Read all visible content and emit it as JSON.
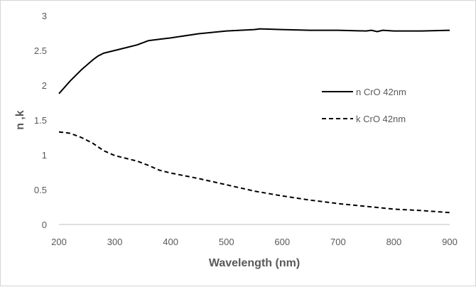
{
  "chart_data": {
    "type": "line",
    "title": "",
    "xlabel": "Wavelength (nm)",
    "ylabel": "n ,k",
    "xlim": [
      200,
      900
    ],
    "ylim": [
      0,
      3
    ],
    "x_ticks": [
      200,
      300,
      400,
      500,
      600,
      700,
      800,
      900
    ],
    "y_ticks": [
      0,
      0.5,
      1,
      1.5,
      2,
      2.5,
      3
    ],
    "x_tick_labels": [
      "200",
      "300",
      "400",
      "500",
      "600",
      "700",
      "800",
      "900"
    ],
    "y_tick_labels": [
      "0",
      "0.5",
      "1",
      "1.5",
      "2",
      "2.5",
      "3"
    ],
    "grid": false,
    "legend_position": "right",
    "series": [
      {
        "name": "n CrO 42nm",
        "style": "solid",
        "color": "#000000",
        "points": [
          [
            200,
            1.88
          ],
          [
            220,
            2.06
          ],
          [
            240,
            2.22
          ],
          [
            260,
            2.36
          ],
          [
            270,
            2.42
          ],
          [
            280,
            2.46
          ],
          [
            300,
            2.5
          ],
          [
            320,
            2.54
          ],
          [
            340,
            2.58
          ],
          [
            360,
            2.64
          ],
          [
            380,
            2.66
          ],
          [
            400,
            2.68
          ],
          [
            450,
            2.74
          ],
          [
            500,
            2.78
          ],
          [
            550,
            2.8
          ],
          [
            560,
            2.81
          ],
          [
            600,
            2.8
          ],
          [
            650,
            2.79
          ],
          [
            700,
            2.79
          ],
          [
            750,
            2.78
          ],
          [
            760,
            2.79
          ],
          [
            770,
            2.77
          ],
          [
            780,
            2.79
          ],
          [
            800,
            2.78
          ],
          [
            850,
            2.78
          ],
          [
            900,
            2.79
          ]
        ]
      },
      {
        "name": "k CrO 42nm",
        "style": "dashed",
        "color": "#000000",
        "points": [
          [
            200,
            1.33
          ],
          [
            220,
            1.31
          ],
          [
            240,
            1.25
          ],
          [
            260,
            1.17
          ],
          [
            280,
            1.06
          ],
          [
            300,
            0.99
          ],
          [
            320,
            0.95
          ],
          [
            340,
            0.91
          ],
          [
            360,
            0.85
          ],
          [
            380,
            0.78
          ],
          [
            400,
            0.74
          ],
          [
            450,
            0.66
          ],
          [
            500,
            0.57
          ],
          [
            550,
            0.48
          ],
          [
            600,
            0.41
          ],
          [
            650,
            0.35
          ],
          [
            700,
            0.3
          ],
          [
            750,
            0.26
          ],
          [
            800,
            0.22
          ],
          [
            850,
            0.2
          ],
          [
            900,
            0.17
          ]
        ]
      }
    ]
  }
}
